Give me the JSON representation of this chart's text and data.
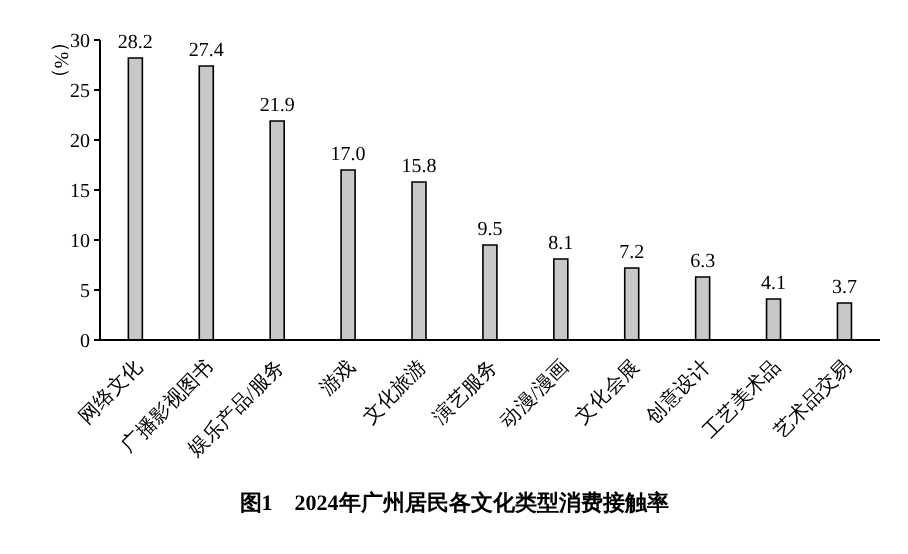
{
  "chart_data": {
    "type": "bar",
    "title": "图1　2024年广州居民各文化类型消费接触率",
    "ylabel": "（%）",
    "categories": [
      "网络文化",
      "广播影视图书",
      "娱乐产品/服务",
      "游戏",
      "文化旅游",
      "演艺服务",
      "动漫/漫画",
      "文化会展",
      "创意设计",
      "工艺美术品",
      "艺术品交易"
    ],
    "values": [
      28.2,
      27.4,
      21.9,
      17.0,
      15.8,
      9.5,
      8.1,
      7.2,
      6.3,
      4.1,
      3.7
    ],
    "value_labels": [
      "28.2",
      "27.4",
      "21.9",
      "17.0",
      "15.8",
      "9.5",
      "8.1",
      "7.2",
      "6.3",
      "4.1",
      "3.7"
    ],
    "color": "#c8c8c8",
    "ylim": [
      0,
      30
    ],
    "yticks": [
      0,
      5,
      10,
      15,
      20,
      25,
      30
    ],
    "grid": false
  }
}
